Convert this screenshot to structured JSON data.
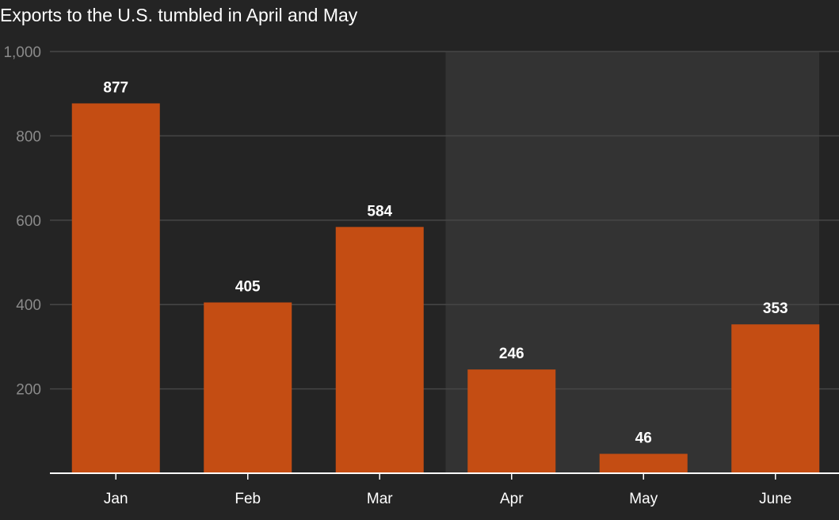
{
  "chart_data": {
    "type": "bar",
    "title": "Exports to the U.S. tumbled in April and May",
    "xlabel": "",
    "ylabel": "",
    "categories": [
      "Jan",
      "Feb",
      "Mar",
      "Apr",
      "May",
      "June"
    ],
    "values": [
      877,
      405,
      584,
      246,
      46,
      353
    ],
    "data_labels": [
      "877",
      "405",
      "584",
      "246",
      "46",
      "353"
    ],
    "ylim": [
      0,
      1000
    ],
    "yticks": [
      200,
      400,
      600,
      800,
      1000
    ],
    "ytick_labels": [
      "200",
      "400",
      "600",
      "800",
      "1,000"
    ],
    "grid": true,
    "highlight_range": [
      "Apr",
      "June"
    ],
    "legend": "none"
  },
  "colors": {
    "background": "#242424",
    "highlight_band": "#333333",
    "bar": "#c44d13",
    "gridline": "#464646",
    "axis": "#ffffff",
    "ytick_text": "#8a8a8a",
    "text": "#ffffff"
  }
}
